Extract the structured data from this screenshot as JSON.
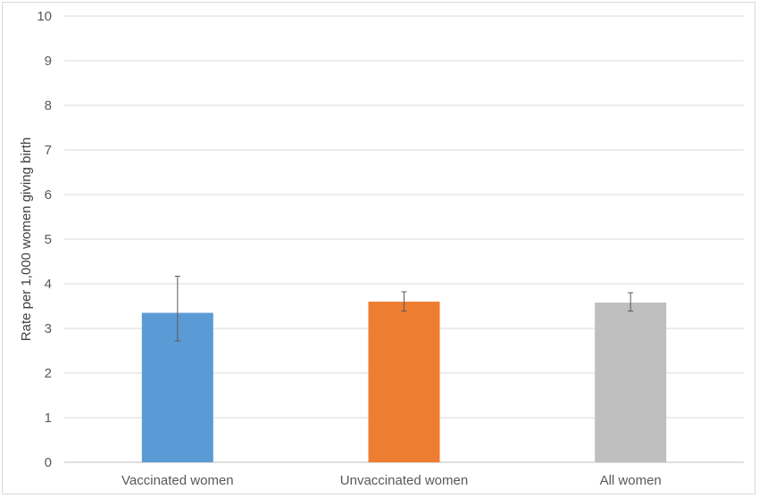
{
  "chart_data": {
    "type": "bar",
    "title": "",
    "xlabel": "",
    "ylabel": "Rate per 1,000 women giving birth",
    "ylim": [
      0,
      10
    ],
    "yticks": [
      "0",
      "1",
      "2",
      "3",
      "4",
      "5",
      "6",
      "7",
      "8",
      "9",
      "10"
    ],
    "grid": true,
    "legend": "none",
    "categories": [
      "Vaccinated women",
      "Unvaccinated women",
      "All women"
    ],
    "values": [
      3.35,
      3.6,
      3.58
    ],
    "error_low": [
      2.72,
      3.39,
      3.39
    ],
    "error_high": [
      4.17,
      3.82,
      3.8
    ],
    "colors": [
      "#5b9bd5",
      "#ed7d31",
      "#bfbfbf"
    ]
  }
}
